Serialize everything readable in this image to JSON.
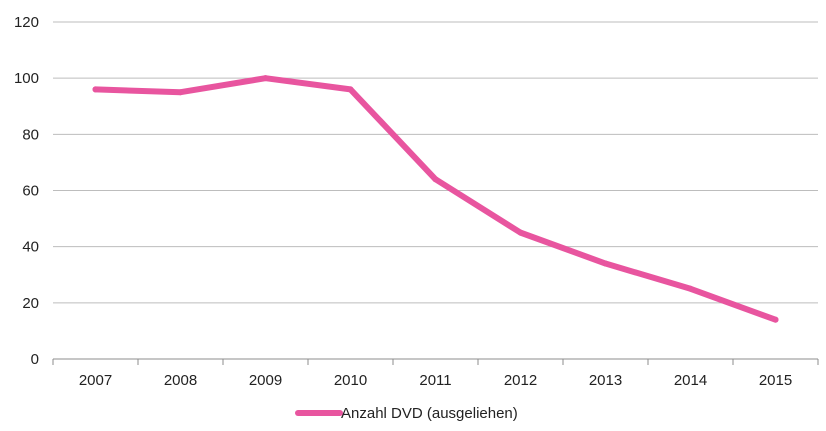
{
  "chart_data": {
    "type": "line",
    "title": "",
    "xlabel": "",
    "ylabel": "",
    "categories": [
      "2007",
      "2008",
      "2009",
      "2010",
      "2011",
      "2012",
      "2013",
      "2014",
      "2015"
    ],
    "series": [
      {
        "name": "Anzahl DVD (ausgeliehen)",
        "color": "#e8559f",
        "values": [
          96,
          95,
          100,
          96,
          64,
          45,
          34,
          25,
          14
        ]
      }
    ],
    "ylim": [
      0,
      120
    ],
    "yticks": [
      "0",
      "20",
      "40",
      "60",
      "80",
      "100",
      "120"
    ],
    "grid": true,
    "legend": "bottom"
  }
}
